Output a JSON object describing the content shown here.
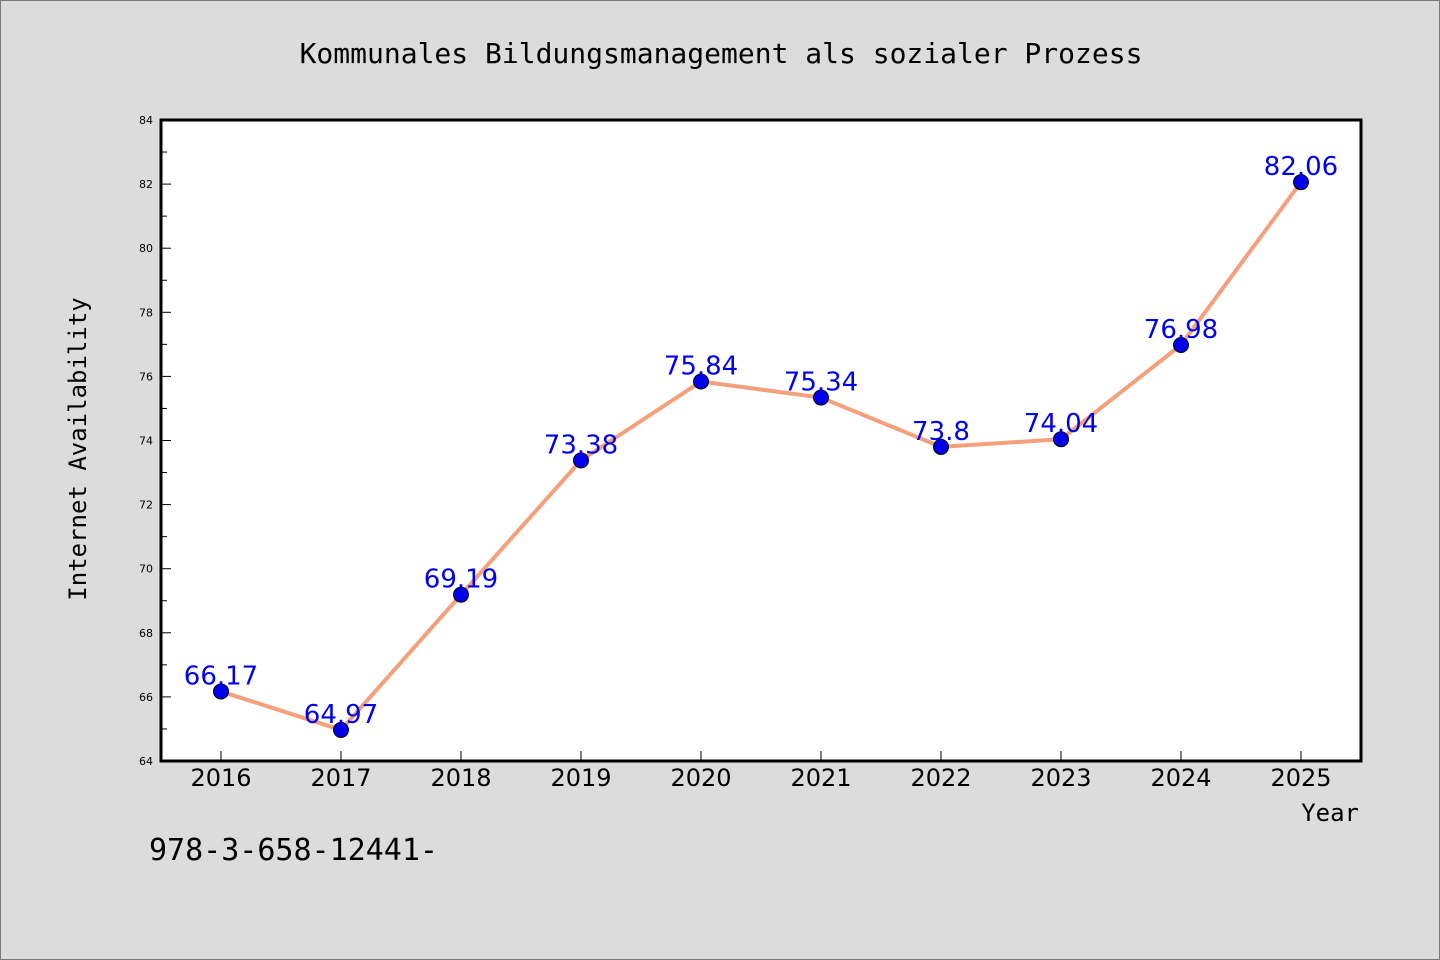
{
  "chart_data": {
    "type": "line",
    "title": "Kommunales Bildungsmanagement als sozialer Prozess",
    "xlabel": "Year",
    "ylabel": "Internet Availability",
    "categories": [
      "2016",
      "2017",
      "2018",
      "2019",
      "2020",
      "2021",
      "2022",
      "2023",
      "2024",
      "2025"
    ],
    "series": [
      {
        "values": [
          66.17,
          64.97,
          69.19,
          73.38,
          75.84,
          75.34,
          73.8,
          74.04,
          76.98,
          82.06
        ],
        "labels": [
          "66.17",
          "64.97",
          "69.19",
          "73.38",
          "75.84",
          "75.34",
          "73.8",
          "74.04",
          "76.98",
          "82.06"
        ]
      }
    ],
    "ylim": [
      64,
      84
    ],
    "yticks": [
      "64",
      "66",
      "68",
      "70",
      "72",
      "74",
      "76",
      "78",
      "80",
      "82",
      "84"
    ],
    "grid": false,
    "legend": "none"
  },
  "footnote": "978-3-658-12441-",
  "colors": {
    "background": "#dcdcdc",
    "plot_background": "#ffffff",
    "line": "#f4a07c",
    "marker": "#0000ee",
    "data_label": "#0000ee"
  }
}
